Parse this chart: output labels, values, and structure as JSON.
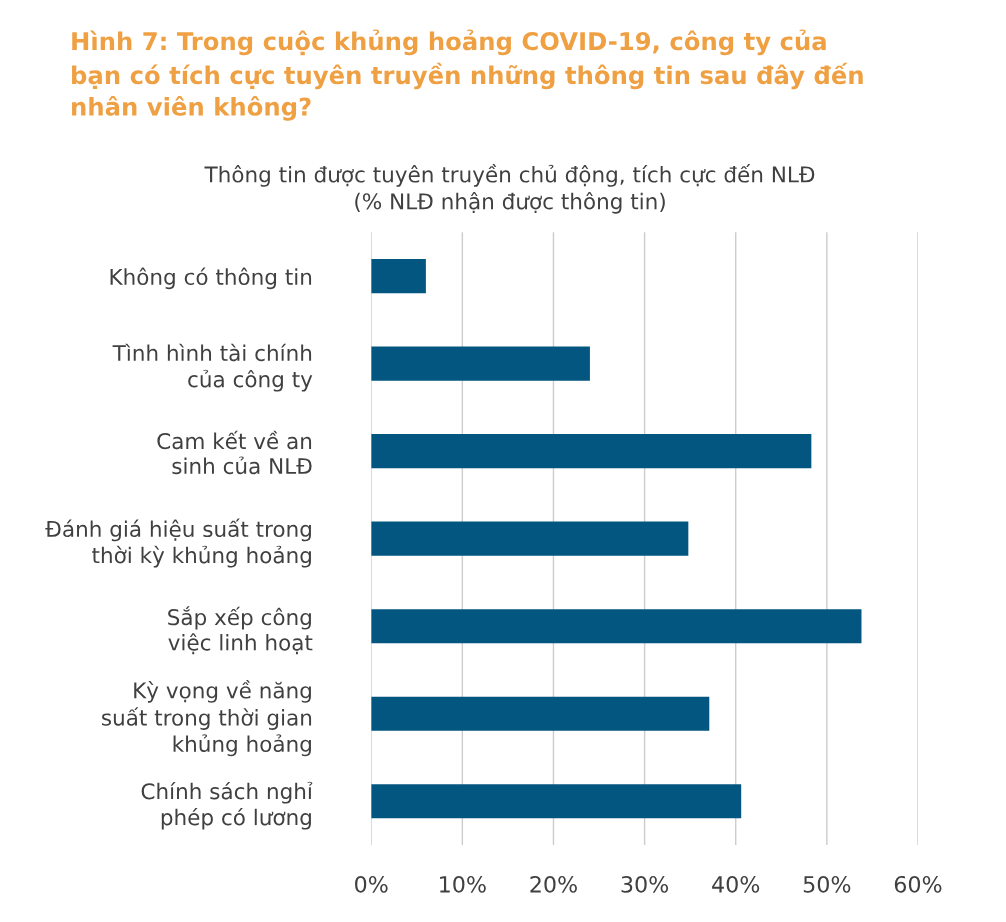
{
  "chart_data": {
    "type": "bar",
    "orientation": "horizontal",
    "title": "Hình 7: Trong cuộc khủng hoảng COVID-19, công ty của\nbạn có tích cực tuyên truyền những thông tin sau đây đến\nnhân viên không?",
    "subtitle": "Thông tin được tuyên truyền chủ động, tích cực đến NLĐ\n(% NLĐ nhận được thông tin)",
    "categories": [
      "Không có thông tin",
      "Tình hình tài chính\ncủa công ty",
      "Cam kết về an\nsinh của NLĐ",
      "Đánh giá hiệu suất trong\nthời kỳ khủng hoảng",
      "Sắp xếp công\nviệc linh hoạt",
      "Kỳ vọng về năng\nsuất trong thời gian\nkhủng hoảng",
      "Chính sách nghỉ\nphép có lương"
    ],
    "values": [
      6.0,
      24.0,
      48.3,
      34.8,
      53.8,
      37.1,
      40.6
    ],
    "color": "#03567f",
    "xlim": [
      0,
      60
    ],
    "xticks": [
      {
        "value": 0,
        "label": "0%"
      },
      {
        "value": 10,
        "label": "10%"
      },
      {
        "value": 20,
        "label": "20%"
      },
      {
        "value": 30,
        "label": "30%"
      },
      {
        "value": 40,
        "label": "40%"
      },
      {
        "value": 50,
        "label": "50%"
      },
      {
        "value": 60,
        "label": "60%"
      }
    ],
    "grid": "x"
  }
}
